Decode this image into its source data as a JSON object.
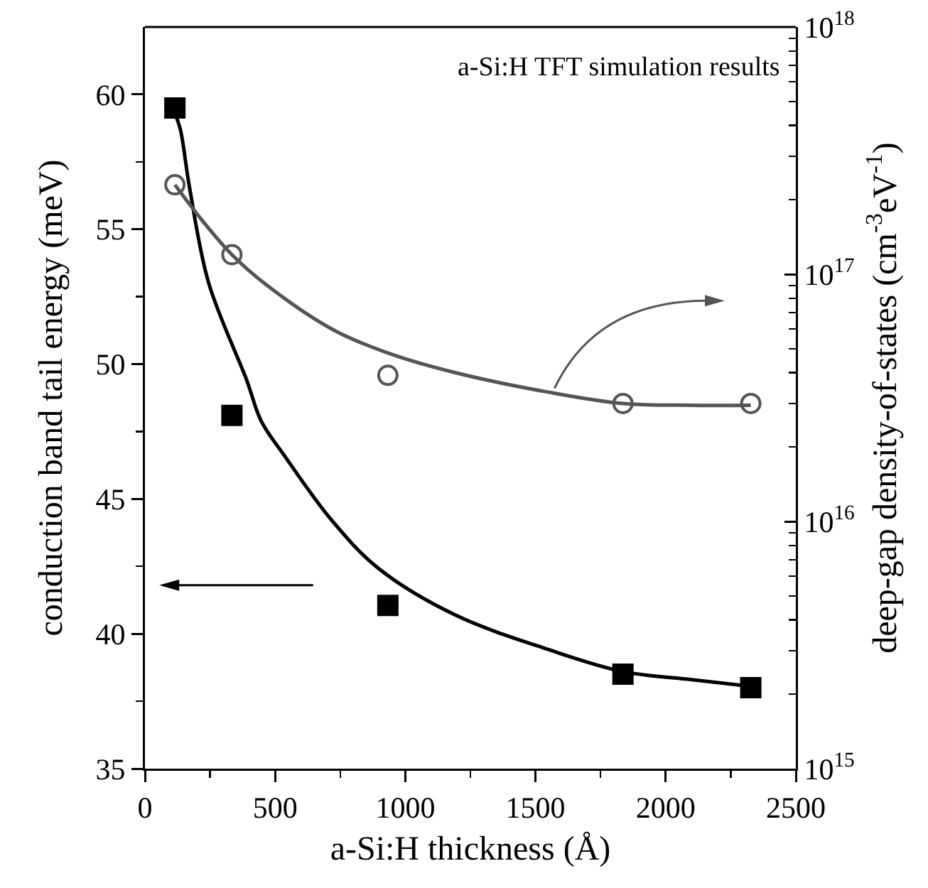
{
  "chart_data": {
    "type": "scatter",
    "xlabel": "a-Si:H thickness (Å)",
    "ylabel": "conduction band tail energy (meV)",
    "y2label": "deep-gap density-of-states (cm$^{-3}$eV$^{-1}$)",
    "annotations": [
      "a-Si:H TFT simulation results"
    ],
    "xlim": [
      0,
      2500
    ],
    "xticks": [
      0,
      {
        "value": 250,
        "label": null
      },
      500,
      {
        "value": 750,
        "label": null
      },
      1000,
      {
        "value": 1250,
        "label": null
      },
      1500,
      {
        "value": 1750,
        "label": null
      },
      2000,
      {
        "value": 2250,
        "label": null
      },
      2500
    ],
    "ylim": [
      35,
      62.5
    ],
    "yticks": [
      35,
      {
        "value": 37.5,
        "label": null
      },
      40,
      {
        "value": 42.5,
        "label": null
      },
      45,
      {
        "value": 47.5,
        "label": null
      },
      50,
      {
        "value": 52.5,
        "label": null
      },
      55,
      {
        "value": 57.5,
        "label": null
      },
      60
    ],
    "y2lim": [
      1000000000000000.0,
      1e+18
    ],
    "y2ticks": [
      {
        "value": 1000000000000000.0,
        "label": "10$^{15}$"
      },
      {
        "value": 2000000000000000.0,
        "label": null
      },
      {
        "value": 3000000000000000.0,
        "label": null
      },
      {
        "value": 4000000000000000.0,
        "label": null
      },
      {
        "value": 5000000000000000.0,
        "label": null
      },
      {
        "value": 6000000000000000.0,
        "label": null
      },
      {
        "value": 7000000000000000.0,
        "label": null
      },
      {
        "value": 8000000000000000.0,
        "label": null
      },
      {
        "value": 9000000000000000.0,
        "label": null
      },
      {
        "value": 1e+16,
        "label": "10$^{16}$"
      },
      {
        "value": 2e+16,
        "label": null
      },
      {
        "value": 3e+16,
        "label": null
      },
      {
        "value": 4e+16,
        "label": null
      },
      {
        "value": 5e+16,
        "label": null
      },
      {
        "value": 6e+16,
        "label": null
      },
      {
        "value": 7e+16,
        "label": null
      },
      {
        "value": 8e+16,
        "label": null
      },
      {
        "value": 9e+16,
        "label": null
      },
      {
        "value": 1e+17,
        "label": "10$^{17}$"
      },
      {
        "value": 2e+17,
        "label": null
      },
      {
        "value": 3e+17,
        "label": null
      },
      {
        "value": 4e+17,
        "label": null
      },
      {
        "value": 5e+17,
        "label": null
      },
      {
        "value": 6e+17,
        "label": null
      },
      {
        "value": 7e+17,
        "label": null
      },
      {
        "value": 8e+17,
        "label": null
      },
      {
        "value": 9e+17,
        "label": null
      },
      {
        "value": 1e+18,
        "label": "10$^{18}$"
      }
    ],
    "log": "y2",
    "grid": false,
    "series": [
      {
        "marker": "square",
        "color": "#000000",
        "x": [
          115,
          334,
          933,
          1836,
          2327
        ],
        "values": [
          59.5,
          48.1,
          41.05,
          38.5,
          38.0
        ]
      },
      {
        "marker": "circle",
        "color": "#555555",
        "axis": "y2",
        "x": [
          115,
          334,
          933,
          1836,
          2327
        ],
        "values": [
          2.3e+17,
          1.2e+17,
          3.9e+16,
          3e+16,
          3e+16
        ]
      },
      {
        "type": "line",
        "marker": "none",
        "line_style": "solid",
        "color": "#000000",
        "x": [
          115,
          136,
          172,
          245,
          391,
          446,
          536,
          718,
          900,
          1191,
          1555,
          1836,
          2100,
          2327
        ],
        "values": [
          59.3,
          58.7,
          56.5,
          53.0,
          49.4,
          47.9,
          46.6,
          44.2,
          42.4,
          40.7,
          39.4,
          38.6,
          38.3,
          38.05
        ]
      },
      {
        "type": "line",
        "marker": "none",
        "line_style": "solid",
        "color": "#555555",
        "axis": "y2",
        "x": [
          115,
          220,
          334,
          464,
          718,
          933,
          1191,
          1573,
          1836,
          2100,
          2327
        ],
        "values": [
          2.3e+17,
          1.65e+17,
          1.2e+17,
          9.1e+16,
          6e+16,
          4.8e+16,
          4e+16,
          3.3e+16,
          3e+16,
          2.95e+16,
          2.95e+16
        ]
      }
    ]
  }
}
